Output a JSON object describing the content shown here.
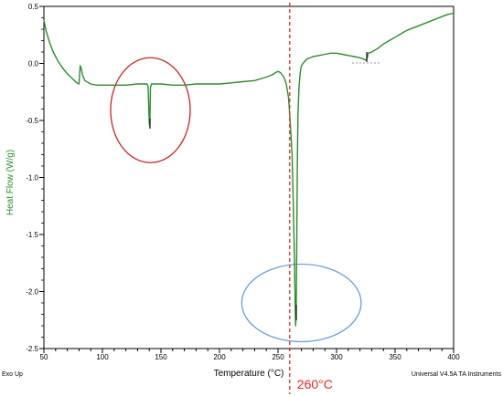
{
  "chart_data": {
    "type": "line",
    "xlabel": "Temperature (°C)",
    "ylabel": "Heat Flow (W/g)",
    "xlim": [
      50,
      400
    ],
    "ylim": [
      -2.5,
      0.5
    ],
    "xticks": [
      50,
      100,
      150,
      200,
      250,
      300,
      350,
      400
    ],
    "yticks": [
      -2.5,
      -2.0,
      -1.5,
      -1.0,
      -0.5,
      0.0,
      0.5
    ],
    "xtick_labels": [
      "50",
      "100",
      "150",
      "200",
      "250",
      "300",
      "350",
      "400"
    ],
    "ytick_labels": [
      "-2.5",
      "-2.0",
      "-1.5",
      "-1.0",
      "-0.5",
      "0.0",
      "0.5"
    ],
    "grid": false,
    "series": [
      {
        "color": "#2e8b2e",
        "x": [
          50,
          52,
          55,
          58,
          62,
          66,
          70,
          74,
          78,
          80,
          81,
          82,
          83,
          85,
          90,
          95,
          100,
          110,
          120,
          130,
          138,
          139,
          140,
          140.5,
          141,
          142,
          150,
          160,
          170,
          180,
          190,
          200,
          210,
          220,
          230,
          240,
          245,
          248,
          250,
          252,
          255,
          257,
          259,
          260,
          261,
          262,
          263,
          264,
          264.5,
          265,
          265.5,
          266,
          266.5,
          267,
          268,
          269,
          270,
          272,
          275,
          280,
          285,
          290,
          295,
          300,
          305,
          310,
          315,
          320,
          325,
          326,
          327,
          330,
          335,
          340,
          345,
          350,
          355,
          360,
          370,
          380,
          390,
          395,
          400
        ],
        "y": [
          0.38,
          0.28,
          0.18,
          0.1,
          0.02,
          -0.04,
          -0.09,
          -0.13,
          -0.17,
          -0.18,
          -0.02,
          -0.05,
          -0.1,
          -0.15,
          -0.18,
          -0.19,
          -0.19,
          -0.19,
          -0.19,
          -0.18,
          -0.18,
          -0.2,
          -0.52,
          -0.55,
          -0.21,
          -0.18,
          -0.18,
          -0.19,
          -0.19,
          -0.18,
          -0.18,
          -0.18,
          -0.17,
          -0.16,
          -0.15,
          -0.12,
          -0.1,
          -0.08,
          -0.07,
          -0.08,
          -0.12,
          -0.18,
          -0.3,
          -0.45,
          -0.62,
          -0.8,
          -1.2,
          -1.7,
          -2.05,
          -2.3,
          -2.22,
          -1.6,
          -0.9,
          -0.45,
          -0.2,
          -0.08,
          -0.02,
          0.01,
          0.04,
          0.06,
          0.07,
          0.08,
          0.09,
          0.09,
          0.08,
          0.07,
          0.06,
          0.05,
          0.03,
          0.04,
          0.09,
          0.1,
          0.13,
          0.17,
          0.2,
          0.23,
          0.26,
          0.29,
          0.33,
          0.37,
          0.41,
          0.43,
          0.44
        ]
      }
    ],
    "annotations": [
      {
        "text": "260°C",
        "x": 260,
        "color": "#e5271d"
      }
    ],
    "circles": [
      {
        "cx": 141,
        "cy": -0.41,
        "rx": 34,
        "ry": 0.46,
        "color": "#cc2222"
      },
      {
        "cx": 270,
        "cy": -2.1,
        "rx": 51,
        "ry": 0.34,
        "color": "#6a9fd8"
      }
    ]
  },
  "labels": {
    "exo_up": "Exo Up",
    "instrument": "Universal V4.5A TA Instruments"
  },
  "colors": {
    "axis_title": "#2e8b2e",
    "curve": "#2e8b2e",
    "frame": "#000000",
    "dashed_line": "#e5271d"
  }
}
